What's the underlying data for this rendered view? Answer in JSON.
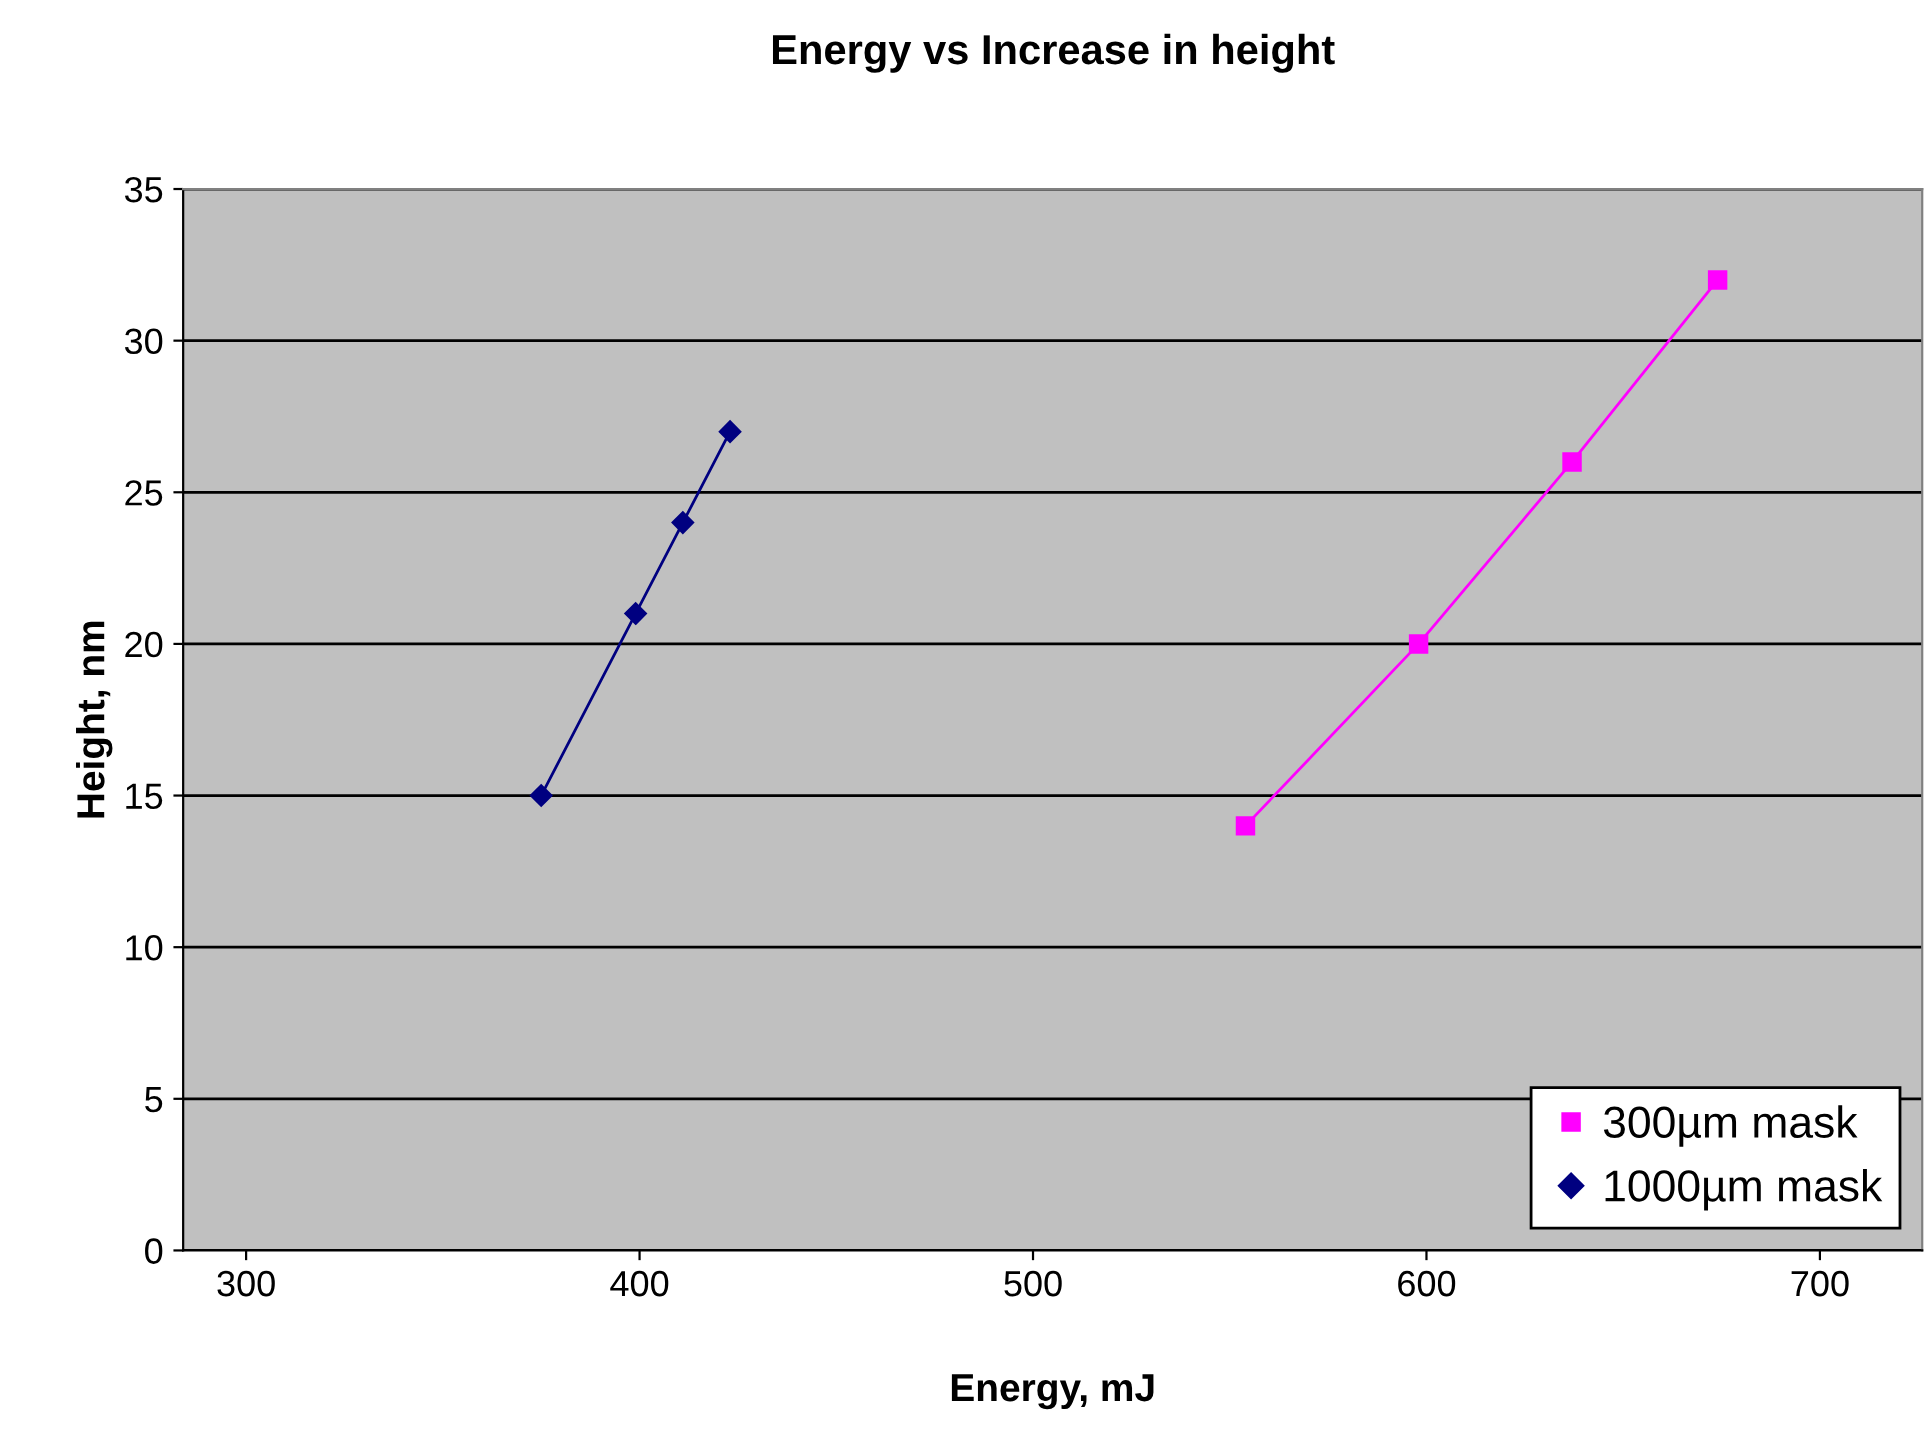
{
  "chart_data": {
    "type": "line",
    "title": "Energy vs Increase in height",
    "xlabel": "Energy, mJ",
    "ylabel": "Height, nm",
    "series": [
      {
        "name": "300µm mask",
        "color": "#ff00ff",
        "marker": "square",
        "x": [
          554,
          598,
          637,
          674
        ],
        "values": [
          14,
          20,
          26,
          32
        ]
      },
      {
        "name": "1000µm mask",
        "color": "#000080",
        "marker": "diamond",
        "x": [
          375,
          399,
          411,
          423
        ],
        "values": [
          15,
          21,
          24,
          27
        ]
      }
    ],
    "xlim": [
      284,
      726
    ],
    "xticks": [
      300,
      400,
      500,
      600,
      700
    ],
    "ylim": [
      0,
      35
    ],
    "yticks": [
      0,
      5,
      10,
      15,
      20,
      25,
      30,
      35
    ],
    "grid": "y",
    "legend": "bottom right",
    "line_style": "solid"
  }
}
